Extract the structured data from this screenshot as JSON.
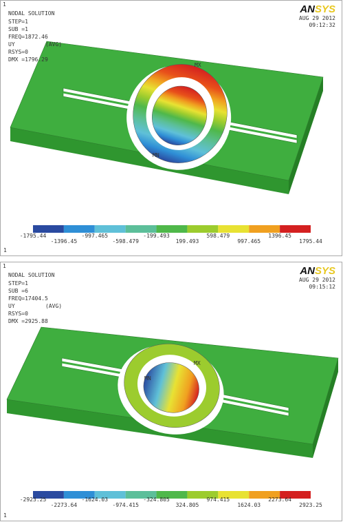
{
  "panels": [
    {
      "corner_number": "1",
      "title": "NODAL SOLUTION",
      "info": [
        "STEP=1",
        "SUB =1",
        "FREQ=1872.46",
        "UY",
        "RSYS=0",
        "DMX =1796.29"
      ],
      "avg": "(AVG)",
      "date": "AUG 29 2012",
      "time": "09:12:32",
      "logo": {
        "an": "AN",
        "sys": "SYS"
      },
      "max_label": "MX",
      "min_label": "MN",
      "legend_top": [
        "-1795.44",
        "-997.465",
        "-199.493",
        "598.479",
        "1396.45"
      ],
      "legend_bottom": [
        "-1396.45",
        "-598.479",
        "199.493",
        "997.465",
        "1795.44"
      ],
      "bottom_number": "1"
    },
    {
      "corner_number": "1",
      "title": "NODAL SOLUTION",
      "info": [
        "STEP=1",
        "SUB =6",
        "FREQ=17404.5",
        "UY",
        "RSYS=0",
        "DMX =2925.88"
      ],
      "avg": "(AVG)",
      "date": "AUG 29 2012",
      "time": "09:15:12",
      "logo": {
        "an": "AN",
        "sys": "SYS"
      },
      "max_label": "MX",
      "min_label": "MN",
      "legend_top": [
        "-2923.25",
        "-1624.03",
        "-324.805",
        "974.415",
        "2273.64"
      ],
      "legend_bottom": [
        "-2273.64",
        "-974.415",
        "324.805",
        "1624.03",
        "2923.25"
      ],
      "bottom_number": "1"
    }
  ]
}
